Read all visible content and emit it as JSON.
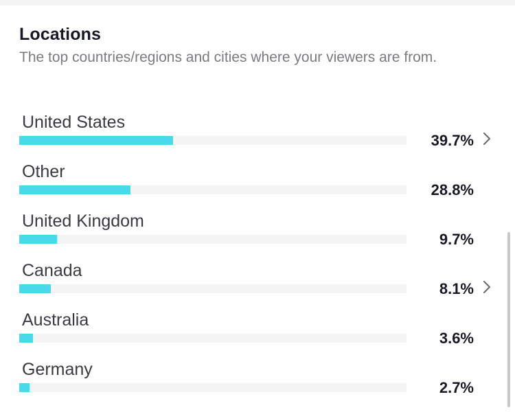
{
  "section": {
    "title": "Locations",
    "subtitle": "The top countries/regions and cities where your viewers are from."
  },
  "locations": [
    {
      "name": "United States",
      "percent_text": "39.7%",
      "percent": 39.7,
      "expandable": true
    },
    {
      "name": "Other",
      "percent_text": "28.8%",
      "percent": 28.8,
      "expandable": false
    },
    {
      "name": "United Kingdom",
      "percent_text": "9.7%",
      "percent": 9.7,
      "expandable": false
    },
    {
      "name": "Canada",
      "percent_text": "8.1%",
      "percent": 8.1,
      "expandable": true
    },
    {
      "name": "Australia",
      "percent_text": "3.6%",
      "percent": 3.6,
      "expandable": false
    },
    {
      "name": "Germany",
      "percent_text": "2.7%",
      "percent": 2.7,
      "expandable": false
    }
  ],
  "colors": {
    "bar_fill": "#4ad9ea",
    "bar_track": "#f4f4f5",
    "text_primary": "#161823",
    "text_secondary": "#7a7b80"
  },
  "icons": {
    "expand": "chevron-right-icon"
  }
}
